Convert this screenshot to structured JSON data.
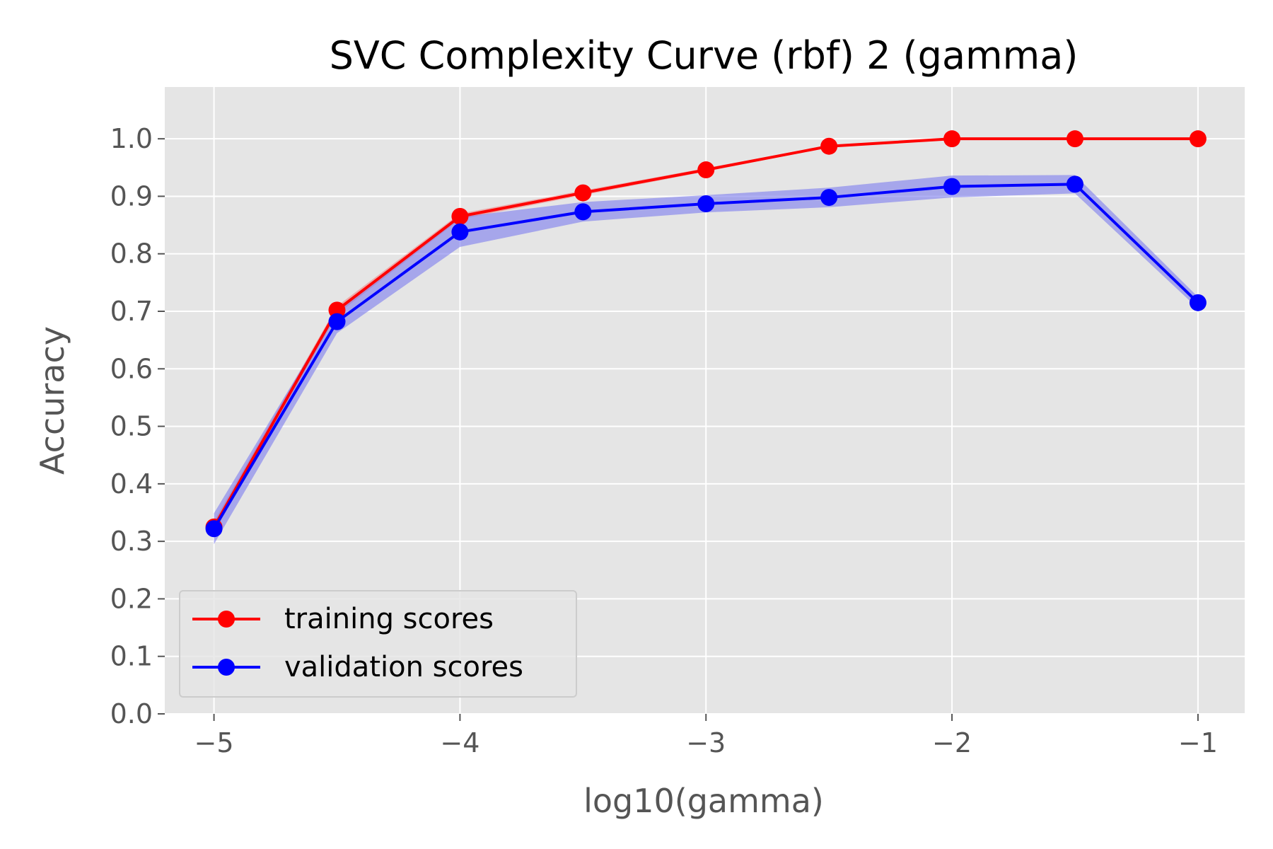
{
  "chart_data": {
    "type": "line",
    "title": "SVC Complexity Curve (rbf) 2 (gamma)",
    "xlabel": "log10(gamma)",
    "ylabel": "Accuracy",
    "xlim": [
      -5.2,
      -0.81
    ],
    "ylim": [
      0.0,
      1.09
    ],
    "xticks": [
      -5,
      -4,
      -3,
      -2,
      -1
    ],
    "xtick_labels": [
      "−5",
      "−4",
      "−3",
      "−2",
      "−1"
    ],
    "yticks": [
      0.0,
      0.1,
      0.2,
      0.3,
      0.4,
      0.5,
      0.6,
      0.7,
      0.8,
      0.9,
      1.0
    ],
    "ytick_labels": [
      "0.0",
      "0.1",
      "0.2",
      "0.3",
      "0.4",
      "0.5",
      "0.6",
      "0.7",
      "0.8",
      "0.9",
      "1.0"
    ],
    "grid": true,
    "legend_position": "bottom-left",
    "x": [
      -5.0,
      -4.5,
      -4.0,
      -3.5,
      -3.0,
      -2.5,
      -2.0,
      -1.5,
      -1.0
    ],
    "series": [
      {
        "name": "training scores",
        "color": "#ff0000",
        "values": [
          0.325,
          0.702,
          0.865,
          0.906,
          0.946,
          0.987,
          1.0,
          1.0,
          1.0
        ],
        "band_lower": [
          0.315,
          0.695,
          0.86,
          0.902,
          0.943,
          0.985,
          1.0,
          1.0,
          1.0
        ],
        "band_upper": [
          0.335,
          0.709,
          0.87,
          0.91,
          0.949,
          0.989,
          1.0,
          1.0,
          1.0
        ]
      },
      {
        "name": "validation scores",
        "color": "#0000ff",
        "band_color": "#7b7bef",
        "values": [
          0.322,
          0.682,
          0.838,
          0.873,
          0.887,
          0.898,
          0.917,
          0.921,
          0.715
        ],
        "band_lower": [
          0.295,
          0.662,
          0.812,
          0.856,
          0.872,
          0.881,
          0.898,
          0.905,
          0.705
        ],
        "band_upper": [
          0.349,
          0.702,
          0.864,
          0.89,
          0.902,
          0.915,
          0.936,
          0.937,
          0.725
        ]
      }
    ],
    "colors": {
      "plot_background": "#e5e5e5",
      "grid": "#ffffff",
      "tick_text": "#555555"
    }
  }
}
